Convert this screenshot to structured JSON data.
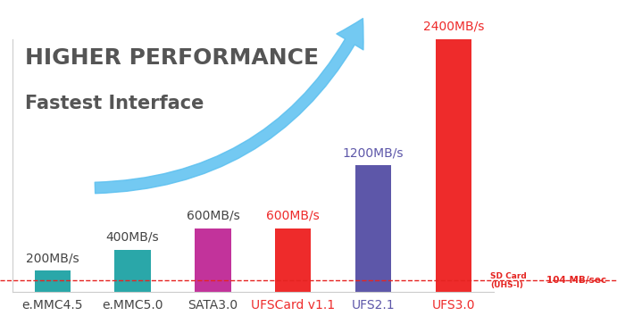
{
  "chart_data": {
    "type": "bar",
    "title": "HIGHER PERFORMANCE",
    "subtitle": "Fastest Interface",
    "categories": [
      "e.MMC4.5",
      "e.MMC5.0",
      "SATA3.0",
      "UFSCard v1.1",
      "UFS2.1",
      "UFS3.0"
    ],
    "values": [
      200,
      400,
      600,
      600,
      1200,
      2400
    ],
    "value_labels": [
      "200MB/s",
      "400MB/s",
      "600MB/s",
      "600MB/s",
      "1200MB/s",
      "2400MB/s"
    ],
    "data_labels": true,
    "colors": [
      "#2aa7a9",
      "#2aa7a9",
      "#c2339b",
      "#ee2b2b",
      "#5d57a9",
      "#ee2b2b"
    ],
    "ylim": [
      0,
      2400
    ],
    "yticks": [],
    "tick_labels": "x",
    "annotations": [
      {
        "value": 104,
        "label": "SD Card\n(UHS-I)",
        "value_label": "104 MB/sec",
        "color": "#e52421"
      }
    ]
  }
}
